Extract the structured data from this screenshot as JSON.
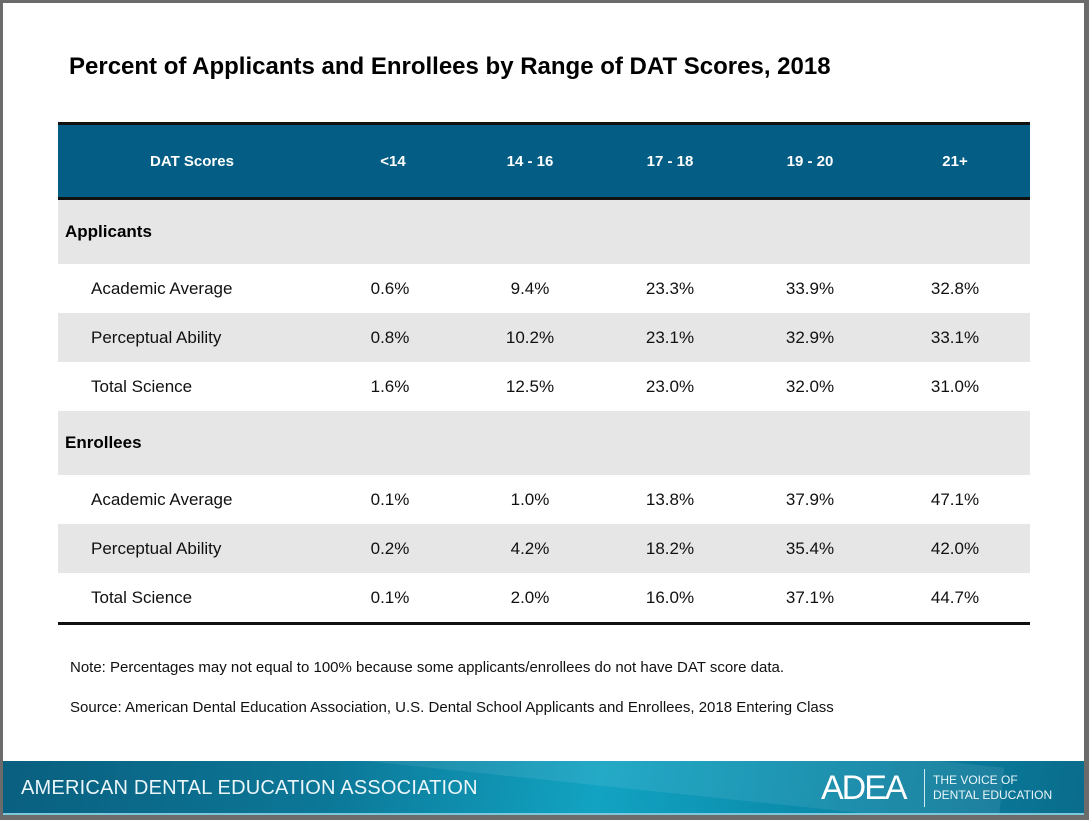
{
  "title": "Percent of Applicants and Enrollees by Range of DAT Scores, 2018",
  "table": {
    "headers": [
      "DAT Scores",
      "<14",
      "14 - 16",
      "17 - 18",
      "19 - 20",
      "21+"
    ],
    "groups": [
      {
        "label": "Applicants",
        "rows": [
          {
            "label": "Academic Average",
            "values": [
              "0.6%",
              "9.4%",
              "23.3%",
              "33.9%",
              "32.8%"
            ]
          },
          {
            "label": "Perceptual Ability",
            "values": [
              "0.8%",
              "10.2%",
              "23.1%",
              "32.9%",
              "33.1%"
            ]
          },
          {
            "label": "Total Science",
            "values": [
              "1.6%",
              "12.5%",
              "23.0%",
              "32.0%",
              "31.0%"
            ]
          }
        ]
      },
      {
        "label": "Enrollees",
        "rows": [
          {
            "label": "Academic Average",
            "values": [
              "0.1%",
              "1.0%",
              "13.8%",
              "37.9%",
              "47.1%"
            ]
          },
          {
            "label": "Perceptual Ability",
            "values": [
              "0.2%",
              "4.2%",
              "18.2%",
              "35.4%",
              "42.0%"
            ]
          },
          {
            "label": "Total Science",
            "values": [
              "0.1%",
              "2.0%",
              "16.0%",
              "37.1%",
              "44.7%"
            ]
          }
        ]
      }
    ]
  },
  "note": "Note: Percentages may not equal to 100% because some applicants/enrollees do not have DAT score data.",
  "source": "Source: American Dental Education Association, U.S. Dental School Applicants and Enrollees, 2018 Entering Class",
  "footer": {
    "organization": "AMERICAN DENTAL EDUCATION ASSOCIATION",
    "logo": "ADEA",
    "tagline_line1": "THE VOICE OF",
    "tagline_line2": "DENTAL EDUCATION"
  },
  "colors": {
    "header_bg": "#045d84",
    "shade": "#e6e6e6"
  }
}
